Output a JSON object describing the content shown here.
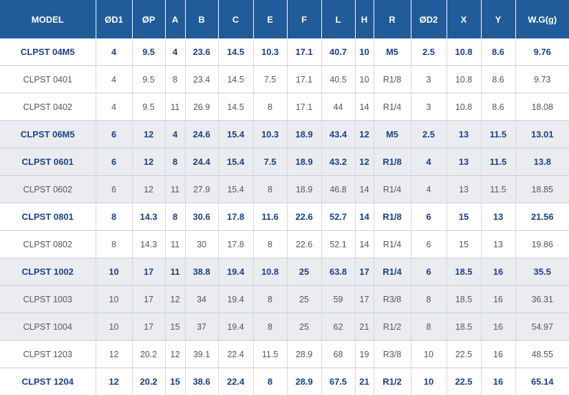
{
  "table": {
    "headers": [
      "MODEL",
      "ØD1",
      "ØP",
      "A",
      "B",
      "C",
      "E",
      "F",
      "L",
      "H",
      "R",
      "ØD2",
      "X",
      "Y",
      "W.G(g)"
    ],
    "rows": [
      {
        "highlight": true,
        "shade": false,
        "cells": [
          "CLPST 04M5",
          "4",
          "9.5",
          "4",
          "23.6",
          "14.5",
          "10.3",
          "17.1",
          "40.7",
          "10",
          "M5",
          "2.5",
          "10.8",
          "8.6",
          "9.76"
        ]
      },
      {
        "highlight": false,
        "shade": false,
        "cells": [
          "CLPST 0401",
          "4",
          "9.5",
          "8",
          "23.4",
          "14.5",
          "7.5",
          "17.1",
          "40.5",
          "10",
          "R1/8",
          "3",
          "10.8",
          "8.6",
          "9.73"
        ]
      },
      {
        "highlight": false,
        "shade": false,
        "cells": [
          "CLPST 0402",
          "4",
          "9.5",
          "11",
          "26.9",
          "14.5",
          "8",
          "17.1",
          "44",
          "14",
          "R1/4",
          "3",
          "10.8",
          "8.6",
          "18.08"
        ]
      },
      {
        "highlight": true,
        "shade": true,
        "cells": [
          "CLPST 06M5",
          "6",
          "12",
          "4",
          "24.6",
          "15.4",
          "10.3",
          "18.9",
          "43.4",
          "12",
          "M5",
          "2.5",
          "13",
          "11.5",
          "13.01"
        ]
      },
      {
        "highlight": true,
        "shade": true,
        "cells": [
          "CLPST 0601",
          "6",
          "12",
          "8",
          "24.4",
          "15.4",
          "7.5",
          "18.9",
          "43.2",
          "12",
          "R1/8",
          "4",
          "13",
          "11.5",
          "13.8"
        ]
      },
      {
        "highlight": false,
        "shade": true,
        "cells": [
          "CLPST 0602",
          "6",
          "12",
          "11",
          "27.9",
          "15.4",
          "8",
          "18.9",
          "46.8",
          "14",
          "R1/4",
          "4",
          "13",
          "11.5",
          "18.85"
        ]
      },
      {
        "highlight": true,
        "shade": false,
        "cells": [
          "CLPST 0801",
          "8",
          "14.3",
          "8",
          "30.6",
          "17.8",
          "11.6",
          "22.6",
          "52.7",
          "14",
          "R1/8",
          "6",
          "15",
          "13",
          "21.56"
        ]
      },
      {
        "highlight": false,
        "shade": false,
        "cells": [
          "CLPST 0802",
          "8",
          "14.3",
          "11",
          "30",
          "17.8",
          "8",
          "22.6",
          "52.1",
          "14",
          "R1/4",
          "6",
          "15",
          "13",
          "19.86"
        ]
      },
      {
        "highlight": true,
        "shade": true,
        "cells": [
          "CLPST 1002",
          "10",
          "17",
          "11",
          "38.8",
          "19.4",
          "10.8",
          "25",
          "63.8",
          "17",
          "R1/4",
          "6",
          "18.5",
          "16",
          "35.5"
        ]
      },
      {
        "highlight": false,
        "shade": true,
        "cells": [
          "CLPST 1003",
          "10",
          "17",
          "12",
          "34",
          "19.4",
          "8",
          "25",
          "59",
          "17",
          "R3/8",
          "8",
          "18.5",
          "16",
          "36.31"
        ]
      },
      {
        "highlight": false,
        "shade": true,
        "cells": [
          "CLPST 1004",
          "10",
          "17",
          "15",
          "37",
          "19.4",
          "8",
          "25",
          "62",
          "21",
          "R1/2",
          "8",
          "18.5",
          "16",
          "54.97"
        ]
      },
      {
        "highlight": false,
        "shade": false,
        "cells": [
          "CLPST 1203",
          "12",
          "20.2",
          "12",
          "39.1",
          "22.4",
          "11.5",
          "28.9",
          "68",
          "19",
          "R3/8",
          "10",
          "22.5",
          "16",
          "48.55"
        ]
      },
      {
        "highlight": true,
        "shade": false,
        "cells": [
          "CLPST 1204",
          "12",
          "20.2",
          "15",
          "38.6",
          "22.4",
          "8",
          "28.9",
          "67.5",
          "21",
          "R1/2",
          "10",
          "22.5",
          "16",
          "65.14"
        ]
      }
    ]
  },
  "colors": {
    "header_bg": "#1f5c99",
    "highlight_text": "#1b3f8a",
    "shade_bg": "#eaecef"
  }
}
